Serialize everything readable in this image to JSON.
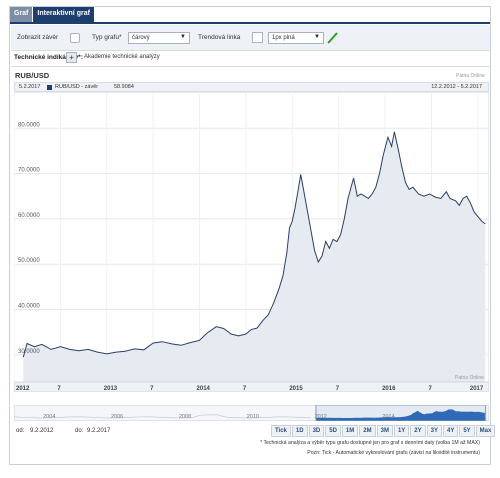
{
  "tabs": [
    {
      "label": "Graf",
      "active": false
    },
    {
      "label": "Interaktivní graf",
      "active": true
    }
  ],
  "toolbar": {
    "show_close_label": "Zobrazit závěr",
    "chart_type_label": "Typ grafu*",
    "chart_type_value": "čárový",
    "trendline_label": "Trendová linka",
    "line_style_value": "1px plná",
    "pen_icon": "pencil-icon"
  },
  "indicators": {
    "label": "Technické indikátory*:",
    "add_button": "+",
    "academy_label": "Akademie technické analýzy"
  },
  "symbol": "RUB/USD",
  "source": "Patria Online",
  "info": {
    "date": "5.2.2017",
    "series_label": "RUB/USD - závěr",
    "series_value": "58.9084",
    "range": "12.2.2012 - 5.2.2017"
  },
  "range_inputs": {
    "from_label": "od:",
    "from_value": "9.2.2012",
    "to_label": "do:",
    "to_value": "9.2.2017"
  },
  "range_buttons": [
    "Tick",
    "1D",
    "3D",
    "5D",
    "1M",
    "2M",
    "3M",
    "1Y",
    "2Y",
    "3Y",
    "4Y",
    "5Y",
    "Max"
  ],
  "footnotes": {
    "line1": "* Technická analýza a výběr typu grafu dostupné jen pro graf s denními daty (volba 1M až MAX)",
    "line2": "Pozn: Tick - Automatické vykreslování grafu (závisí na likviditě instrumentu)"
  },
  "colors": {
    "line": "#2b3f63",
    "fill": "#e6ebf2",
    "nav_fill": "#2f6bb8",
    "active_tab": "#1e3e6e"
  },
  "chart_data": {
    "type": "area",
    "series": [
      {
        "name": "RUB/USD - závěr",
        "points": [
          [
            2012.1,
            29.5
          ],
          [
            2012.14,
            32.5
          ],
          [
            2012.22,
            31.8
          ],
          [
            2012.3,
            32.3
          ],
          [
            2012.4,
            31.2
          ],
          [
            2012.5,
            31.8
          ],
          [
            2012.6,
            31.2
          ],
          [
            2012.7,
            30.9
          ],
          [
            2012.8,
            31.2
          ],
          [
            2012.9,
            30.6
          ],
          [
            2013.0,
            30.2
          ],
          [
            2013.1,
            30.6
          ],
          [
            2013.2,
            30.8
          ],
          [
            2013.3,
            31.3
          ],
          [
            2013.4,
            31.1
          ],
          [
            2013.5,
            32.6
          ],
          [
            2013.6,
            32.9
          ],
          [
            2013.7,
            32.4
          ],
          [
            2013.8,
            32.1
          ],
          [
            2013.9,
            32.7
          ],
          [
            2014.0,
            33.2
          ],
          [
            2014.08,
            34.8
          ],
          [
            2014.18,
            36.2
          ],
          [
            2014.26,
            35.8
          ],
          [
            2014.34,
            34.6
          ],
          [
            2014.42,
            34.2
          ],
          [
            2014.5,
            34.6
          ],
          [
            2014.56,
            35.6
          ],
          [
            2014.62,
            35.9
          ],
          [
            2014.68,
            37.5
          ],
          [
            2014.74,
            38.8
          ],
          [
            2014.8,
            41.5
          ],
          [
            2014.86,
            44.8
          ],
          [
            2014.9,
            47.5
          ],
          [
            2014.94,
            52.5
          ],
          [
            2014.97,
            58.0
          ],
          [
            2015.0,
            59.5
          ],
          [
            2015.03,
            62.5
          ],
          [
            2015.06,
            66.0
          ],
          [
            2015.09,
            69.8
          ],
          [
            2015.12,
            66.5
          ],
          [
            2015.16,
            62.0
          ],
          [
            2015.2,
            57.5
          ],
          [
            2015.24,
            53.0
          ],
          [
            2015.28,
            50.5
          ],
          [
            2015.32,
            51.8
          ],
          [
            2015.36,
            55.0
          ],
          [
            2015.4,
            53.5
          ],
          [
            2015.44,
            55.5
          ],
          [
            2015.48,
            55.0
          ],
          [
            2015.52,
            56.5
          ],
          [
            2015.56,
            60.0
          ],
          [
            2015.6,
            64.5
          ],
          [
            2015.64,
            67.5
          ],
          [
            2015.66,
            69.0
          ],
          [
            2015.7,
            65.0
          ],
          [
            2015.74,
            65.5
          ],
          [
            2015.78,
            65.0
          ],
          [
            2015.82,
            64.5
          ],
          [
            2015.86,
            65.5
          ],
          [
            2015.9,
            67.0
          ],
          [
            2015.94,
            70.0
          ],
          [
            2015.98,
            74.0
          ],
          [
            2016.03,
            78.0
          ],
          [
            2016.07,
            76.0
          ],
          [
            2016.1,
            79.2
          ],
          [
            2016.14,
            75.5
          ],
          [
            2016.18,
            71.5
          ],
          [
            2016.22,
            68.0
          ],
          [
            2016.26,
            66.5
          ],
          [
            2016.3,
            67.0
          ],
          [
            2016.36,
            65.5
          ],
          [
            2016.42,
            65.0
          ],
          [
            2016.48,
            65.5
          ],
          [
            2016.54,
            64.8
          ],
          [
            2016.6,
            64.5
          ],
          [
            2016.66,
            66.0
          ],
          [
            2016.7,
            64.5
          ],
          [
            2016.76,
            64.0
          ],
          [
            2016.8,
            63.0
          ],
          [
            2016.84,
            64.5
          ],
          [
            2016.88,
            65.0
          ],
          [
            2016.92,
            63.5
          ],
          [
            2016.96,
            61.5
          ],
          [
            2017.0,
            60.5
          ],
          [
            2017.04,
            59.5
          ],
          [
            2017.08,
            58.9
          ]
        ]
      }
    ],
    "y_ticks": [
      "30.0000",
      "40.0000",
      "50.0000",
      "60.0000",
      "70.0000",
      "80.0000"
    ],
    "y_values": [
      30,
      40,
      50,
      60,
      70,
      80
    ],
    "ylim": [
      24,
      88
    ],
    "x_ticks": [
      "2012",
      "7",
      "2013",
      "7",
      "2014",
      "7",
      "2015",
      "7",
      "2016",
      "7",
      "2017"
    ],
    "x_tick_values": [
      2012.0,
      2012.5,
      2013.0,
      2013.5,
      2014.0,
      2014.5,
      2015.0,
      2015.5,
      2016.0,
      2016.5,
      2017.0
    ],
    "xlim": [
      2012.0,
      2017.12
    ],
    "grid": true,
    "navigator": {
      "labels": [
        "2004",
        "2006",
        "2008",
        "2010",
        "2012",
        "2014"
      ],
      "label_values": [
        2004,
        2006,
        2008,
        2010,
        2012,
        2014
      ],
      "xlim": [
        2003.2,
        2017.2
      ]
    }
  }
}
